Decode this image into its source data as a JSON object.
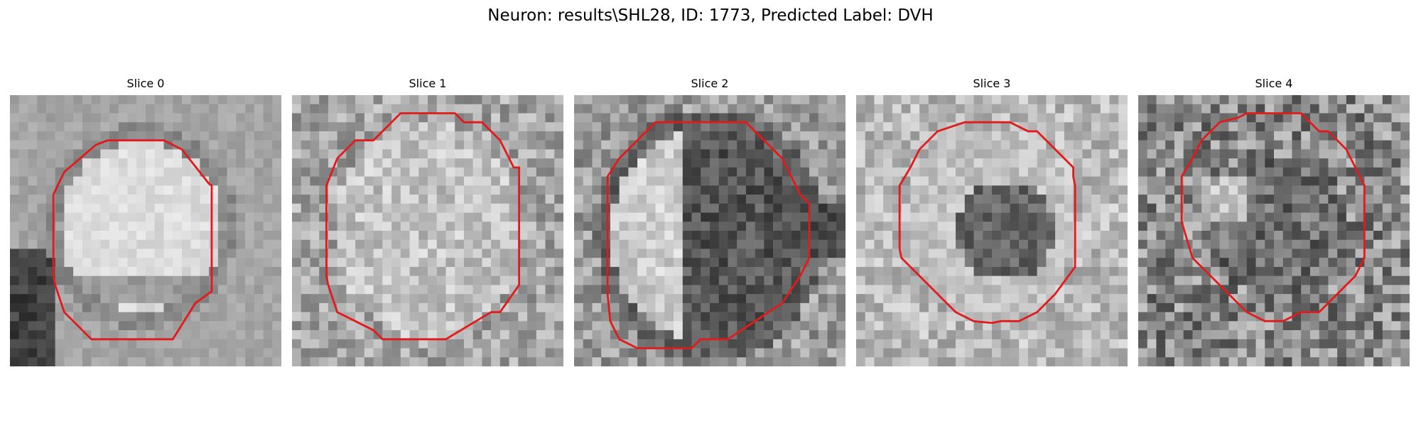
{
  "figure": {
    "title": "Neuron: results\\SHL28, ID: 1773, Predicted Label: DVH",
    "contour_color": "#e31a1c",
    "colormap": "grayscale"
  },
  "panels": [
    {
      "title": "Slice 0",
      "brightness": "bright round cell body, dark band in lower part, dark region at left edge"
    },
    {
      "title": "Slice 1",
      "brightness": "mostly bright textured interior"
    },
    {
      "title": "Slice 2",
      "brightness": "bright left half, dark right half"
    },
    {
      "title": "Slice 3",
      "brightness": "bright rim with dark center"
    },
    {
      "title": "Slice 4",
      "brightness": "noisy, darker center"
    }
  ]
}
